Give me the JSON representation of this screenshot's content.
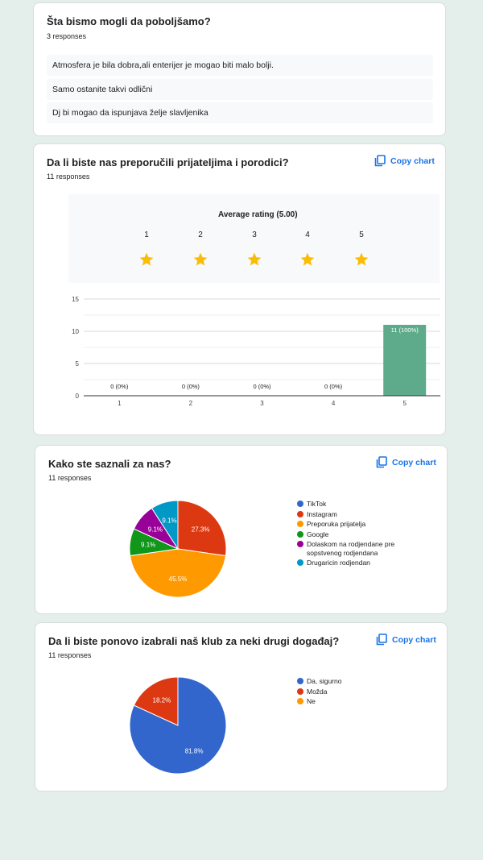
{
  "q1": {
    "title": "Šta bismo mogli da poboljšamo?",
    "responses": "3 responses",
    "answers": [
      "Atmosfera je bila dobra,ali enterijer je mogao biti malo bolji.",
      "Samo ostanite takvi odlični",
      "Dj bi mogao da ispunjava želje slavljenika"
    ]
  },
  "q2": {
    "title": "Da li biste nas preporučili prijateljima i porodici?",
    "responses": "11 responses",
    "copy_label": "Copy chart",
    "average_label": "Average rating (5.00)",
    "star_labels": [
      "1",
      "2",
      "3",
      "4",
      "5"
    ]
  },
  "q3": {
    "title": "Kako ste saznali za nas?",
    "responses": "11 responses",
    "copy_label": "Copy chart"
  },
  "q4": {
    "title": "Da li biste ponovo izabrali naš klub za neki drugi događaj?",
    "responses": "11 responses",
    "copy_label": "Copy chart"
  },
  "colors": {
    "accent": "#1a73e8",
    "star": "#fbbc04",
    "bar": "#5dab8a",
    "blue": "#3366cc",
    "red": "#dc3912",
    "orange": "#ff9900",
    "green": "#109618",
    "purple": "#990099",
    "teal": "#0099c6"
  },
  "chart_data": [
    {
      "type": "bar",
      "categories": [
        "1",
        "2",
        "3",
        "4",
        "5"
      ],
      "values": [
        0,
        0,
        0,
        0,
        11
      ],
      "data_labels": [
        "0 (0%)",
        "0 (0%)",
        "0 (0%)",
        "0 (0%)",
        "11 (100%)"
      ],
      "ylim": [
        0,
        15
      ],
      "yticks": [
        0,
        5,
        10,
        15
      ],
      "grid": true
    },
    {
      "type": "pie",
      "labels": [
        "TikTok",
        "Instagram",
        "Preporuka prijatelja",
        "Google",
        "Dolaskom na rodjendane pre sopstvenog rodjendana",
        "Drugaricin rodjendan"
      ],
      "values": [
        0,
        3,
        5,
        1,
        1,
        1
      ],
      "slice_labels": [
        "",
        "27.3%",
        "45.5%",
        "9.1%",
        "9.1%",
        "9.1%"
      ],
      "colors": [
        "#3366cc",
        "#dc3912",
        "#ff9900",
        "#109618",
        "#990099",
        "#0099c6"
      ],
      "legend": "right"
    },
    {
      "type": "pie",
      "labels": [
        "Da, sigurno",
        "Možda",
        "Ne"
      ],
      "values": [
        9,
        2,
        0
      ],
      "slice_labels": [
        "81.8%",
        "18.2%",
        ""
      ],
      "colors": [
        "#3366cc",
        "#dc3912",
        "#ff9900"
      ],
      "legend": "right"
    }
  ]
}
